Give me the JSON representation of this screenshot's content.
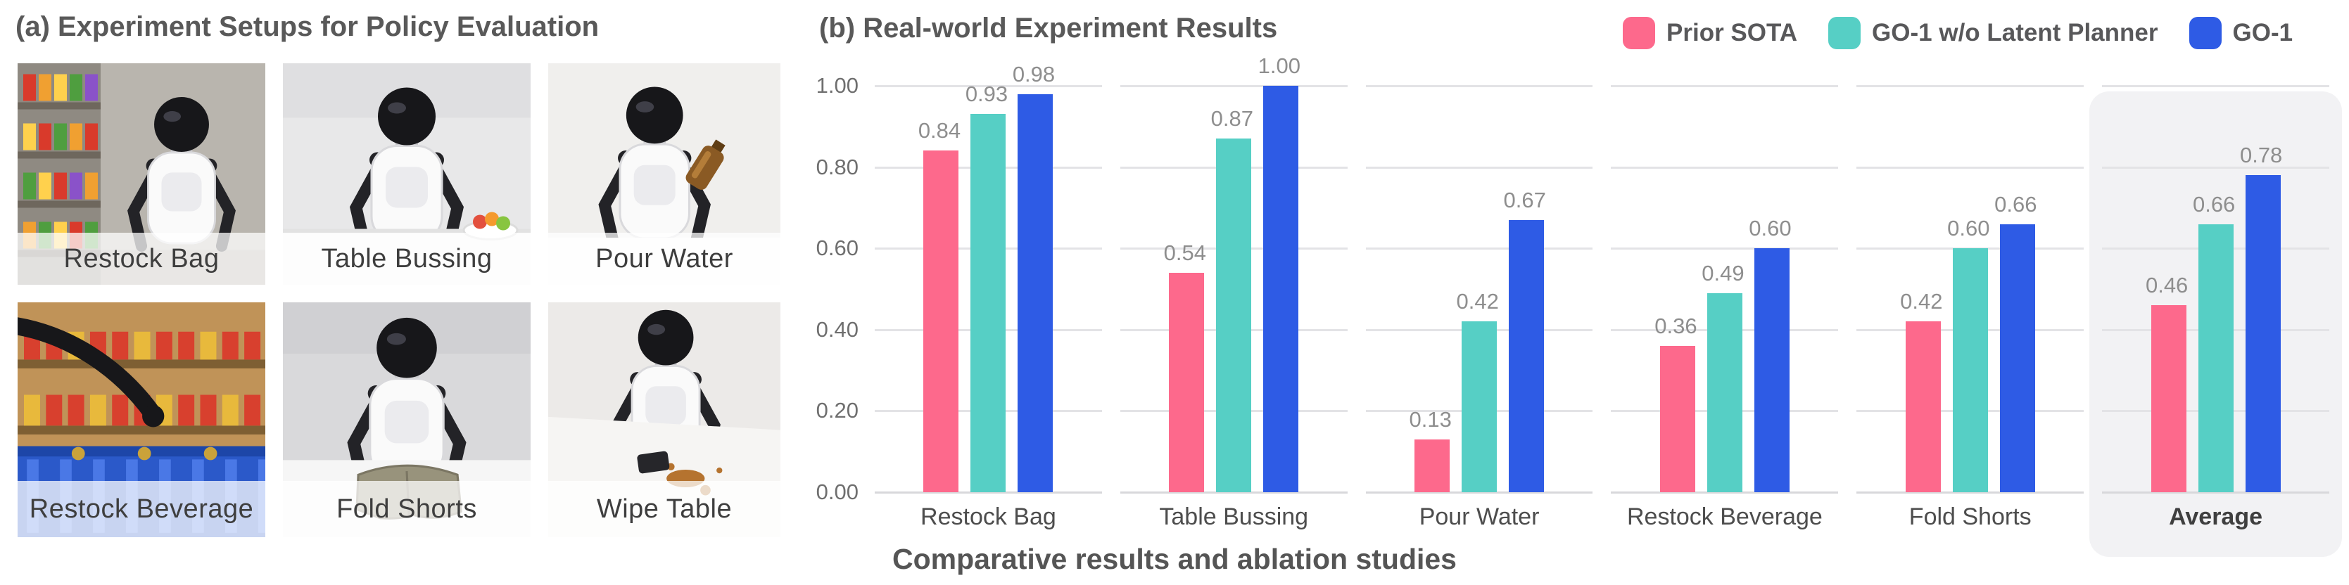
{
  "panel_a": {
    "title": "(a) Experiment Setups for Policy Evaluation",
    "tiles": [
      {
        "label": "Restock Bag"
      },
      {
        "label": "Table Bussing"
      },
      {
        "label": "Pour Water"
      },
      {
        "label": "Restock Beverage"
      },
      {
        "label": "Fold Shorts"
      },
      {
        "label": "Wipe Table"
      }
    ]
  },
  "panel_b": {
    "title": "(b) Real-world Experiment Results",
    "caption": "Comparative results and ablation studies"
  },
  "chart_data": {
    "type": "bar",
    "title": "(b) Real-world Experiment Results",
    "categories": [
      "Restock Bag",
      "Table Bussing",
      "Pour Water",
      "Restock Beverage",
      "Fold Shorts",
      "Average"
    ],
    "series": [
      {
        "name": "Prior SOTA",
        "color": "#FD698C",
        "values": [
          0.84,
          0.54,
          0.13,
          0.36,
          0.42,
          0.46
        ]
      },
      {
        "name": "GO-1 w/o Latent Planner",
        "color": "#56CFC5",
        "values": [
          0.93,
          0.87,
          0.42,
          0.49,
          0.6,
          0.66
        ]
      },
      {
        "name": "GO-1",
        "color": "#2E5BE5",
        "values": [
          0.98,
          1.0,
          0.67,
          0.6,
          0.66,
          0.78
        ]
      }
    ],
    "ylim": [
      0,
      1.0
    ],
    "yticks": [
      "0.00",
      "0.20",
      "0.40",
      "0.60",
      "0.80",
      "1.00"
    ],
    "grid": true,
    "legend_position": "top-right",
    "highlight_category": "Average",
    "highlight_color": "#f2f2f4",
    "gridline_color": "#e3e3e6",
    "value_label_color": "#8e8e8e",
    "xlabel": "",
    "ylabel": ""
  }
}
